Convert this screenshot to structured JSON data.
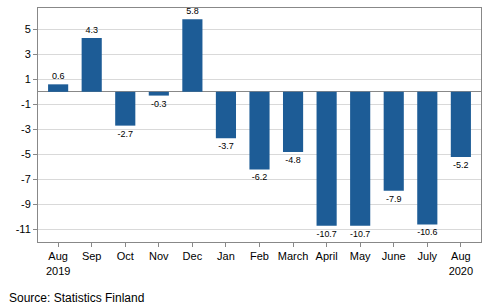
{
  "chart_data": {
    "type": "bar",
    "categories": [
      "Aug\n2019",
      "Sep",
      "Oct",
      "Nov",
      "Dec",
      "Jan",
      "Feb",
      "March",
      "April",
      "May",
      "June",
      "July",
      "Aug\n2020"
    ],
    "values": [
      0.6,
      4.3,
      -2.7,
      -0.3,
      5.8,
      -3.7,
      -6.2,
      -4.8,
      -10.7,
      -10.7,
      -7.9,
      -10.6,
      -5.2
    ],
    "color": "#1d5c96",
    "ylim": [
      -12,
      6.7
    ],
    "yticks": [
      5,
      3,
      1,
      -1,
      -3,
      -5,
      -7,
      -9,
      -11
    ],
    "grid": true,
    "data_labels": true,
    "source": "Source: Statistics Finland"
  }
}
